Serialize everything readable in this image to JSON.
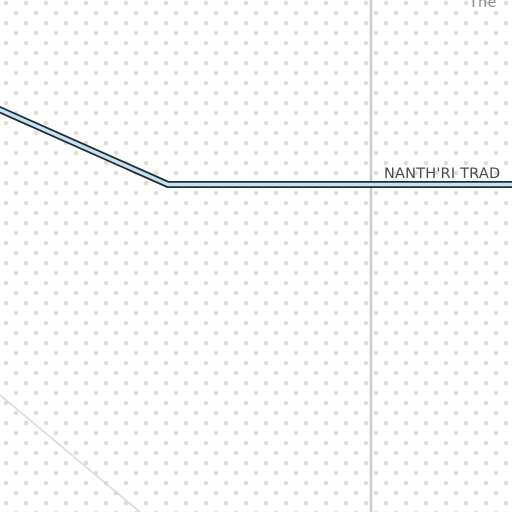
{
  "map": {
    "labels": {
      "road_name": "NANTH'RI TRAD",
      "place_fragment": "The"
    },
    "colors": {
      "background": "#ffffff",
      "dot_pattern": "#deded3",
      "road_fill": "#bfe6f6",
      "road_outline": "#262c30",
      "boundary_line": "#cccccc",
      "minor_path": "#d8d8d8"
    }
  }
}
